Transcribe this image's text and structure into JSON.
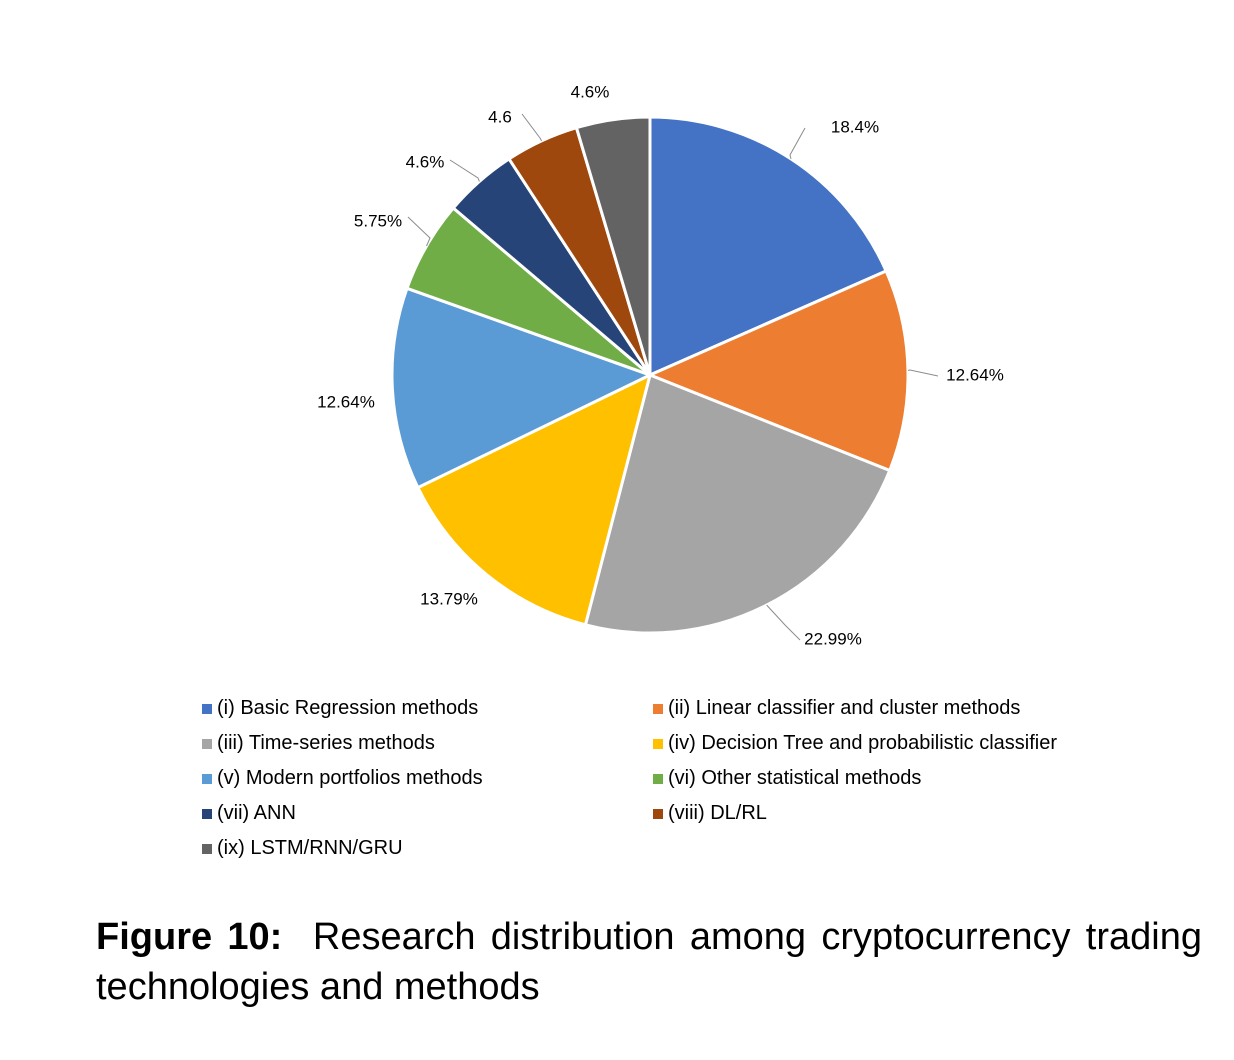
{
  "chart_data": {
    "type": "pie",
    "title": "",
    "slices": [
      {
        "name": "(i) Basic Regression methods",
        "value": 18.4,
        "label": "18.4%",
        "color": "#4472C4"
      },
      {
        "name": "(ii) Linear classifier and cluster methods",
        "value": 12.64,
        "label": "12.64%",
        "color": "#ED7D31"
      },
      {
        "name": "(iii) Time-series methods",
        "value": 22.99,
        "label": "22.99%",
        "color": "#A5A5A5"
      },
      {
        "name": "(iv) Decision Tree and probabilistic classifier",
        "value": 13.79,
        "label": "13.79%",
        "color": "#FFC000"
      },
      {
        "name": "(v) Modern portfolios methods",
        "value": 12.64,
        "label": "12.64%",
        "color": "#5B9BD5"
      },
      {
        "name": "(vi) Other statistical methods",
        "value": 5.75,
        "label": "5.75%",
        "color": "#70AD47"
      },
      {
        "name": "(vii) ANN",
        "value": 4.6,
        "label": "4.6%",
        "color": "#264478"
      },
      {
        "name": "(viii) DL/RL",
        "value": 4.6,
        "label": "4.6",
        "color": "#9E480E"
      },
      {
        "name": "(ix) LSTM/RNN/GRU",
        "value": 4.6,
        "label": "4.6%",
        "color": "#636363"
      }
    ],
    "legend_position": "bottom"
  },
  "caption": {
    "figure_label": "Figure 10:",
    "text": "Research distribution among cryptocurrency trading technologies and methods"
  }
}
